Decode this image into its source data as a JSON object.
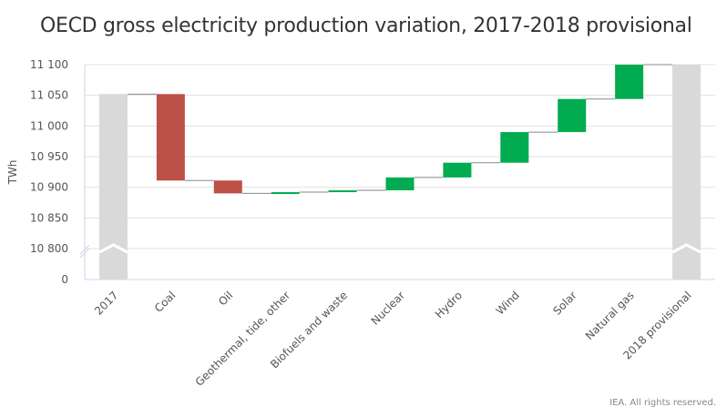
{
  "chart_data": {
    "type": "waterfall",
    "title": "OECD gross electricity production variation, 2017-2018 provisional",
    "ylabel": "TWh",
    "xlabel": "",
    "ylim": [
      10800,
      11100
    ],
    "y_ticks": [
      "0",
      "10 800",
      "10 850",
      "10 900",
      "10 950",
      "11 000",
      "11 050",
      "11 100"
    ],
    "y_tick_values": [
      0,
      10800,
      10850,
      10900,
      10950,
      11000,
      11050,
      11100
    ],
    "axis_break": "between 0 and 10 800",
    "grid": true,
    "categories": [
      "2017",
      "Coal",
      "Oil",
      "Geothermal, tide, other",
      "Biofuels and waste",
      "Nuclear",
      "Hydro",
      "Wind",
      "Solar",
      "Natural gas",
      "2018 provisional"
    ],
    "kinds": [
      "total",
      "delta",
      "delta",
      "delta",
      "delta",
      "delta",
      "delta",
      "delta",
      "delta",
      "delta",
      "total"
    ],
    "values": [
      11052,
      -141,
      -21,
      2,
      3,
      21,
      24,
      50,
      54,
      56,
      11100
    ],
    "colors": {
      "total": "#d9d9d9",
      "decrease": "#bd5046",
      "increase": "#00ac4f",
      "connector": "#888888",
      "grid": "#e6e0e0",
      "axis": "#ccd6eb"
    }
  },
  "credit": "IEA. All rights reserved."
}
